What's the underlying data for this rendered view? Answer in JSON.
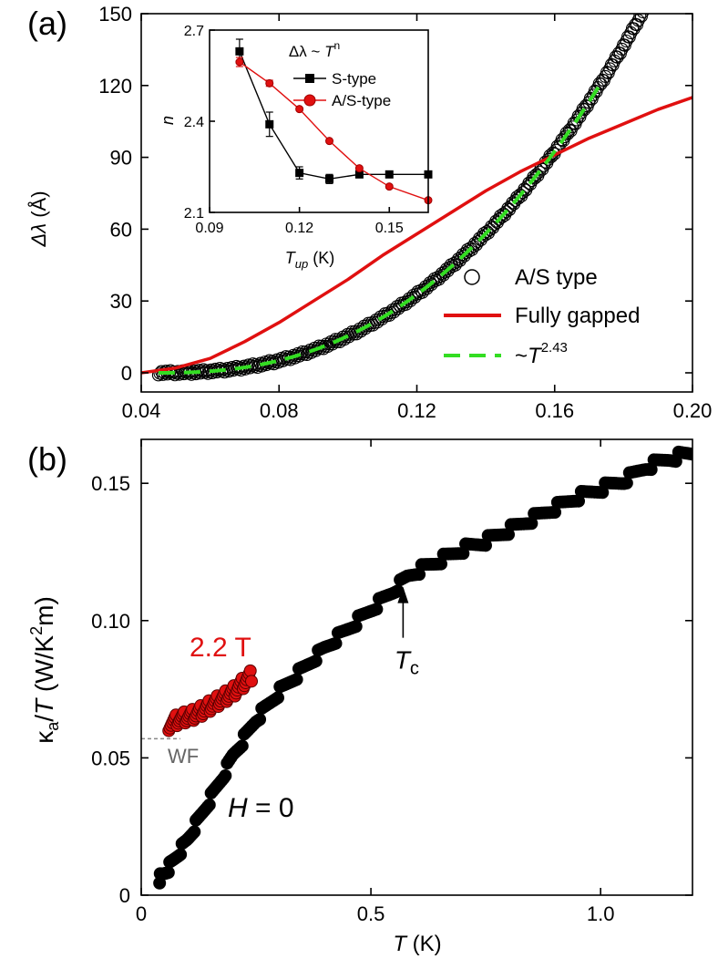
{
  "chart_data": [
    {
      "panel": "(a)",
      "type": "scatter",
      "xlabel": "",
      "ylabel": "Δλ (Å)",
      "ylabel_symbol": "Δλ",
      "ylabel_unit": " (Å)",
      "xlim": [
        0.04,
        0.2
      ],
      "ylim": [
        -8,
        150
      ],
      "xticks": [
        0.04,
        0.08,
        0.12,
        0.16,
        0.2
      ],
      "xtick_labels": [
        "0.04",
        "0.08",
        "0.12",
        "0.16",
        "0.20"
      ],
      "yticks": [
        0,
        30,
        60,
        90,
        120,
        150
      ],
      "ytick_labels": [
        "0",
        "30",
        "60",
        "90",
        "120",
        "150"
      ],
      "series": [
        {
          "name": "A/S type",
          "style": "open-circles",
          "color": "#000000",
          "legend": "A/S type",
          "x_range": [
            0.045,
            0.193
          ],
          "power_n": 2.43,
          "offset_x": 0.045,
          "amplitude": 120,
          "scale_x": 0.128
        },
        {
          "name": "Fully gapped",
          "style": "line",
          "color": "#e01010",
          "legend": "Fully gapped",
          "x": [
            0.04,
            0.045,
            0.05,
            0.06,
            0.07,
            0.08,
            0.09,
            0.1,
            0.11,
            0.12,
            0.13,
            0.14,
            0.15,
            0.16,
            0.17,
            0.18,
            0.19,
            0.2
          ],
          "y": [
            0,
            1,
            2,
            6,
            13,
            21,
            30,
            39,
            49,
            58,
            67,
            76,
            84,
            91,
            98,
            104,
            110,
            115
          ]
        },
        {
          "name": "~T^2.43",
          "style": "dashed",
          "color": "#33dd22",
          "legend_prefix": "~",
          "legend_symbol": "T",
          "legend_sup": "2.43",
          "x_range": [
            0.045,
            0.173
          ],
          "power_n": 2.43,
          "offset_x": 0.045,
          "amplitude": 120,
          "scale_x": 0.128
        }
      ],
      "inset": {
        "title_prefix": "Δλ ~ ",
        "title_symbol": "T",
        "title_sup": "n",
        "xlabel_symbol": "T",
        "xlabel_sub": "up",
        "xlabel_unit": " (K)",
        "ylabel": "n",
        "xlim": [
          0.09,
          0.163
        ],
        "ylim": [
          2.1,
          2.7
        ],
        "xticks": [
          0.09,
          0.12,
          0.15
        ],
        "xtick_labels": [
          "0.09",
          "0.12",
          "0.15"
        ],
        "yticks": [
          2.1,
          2.4,
          2.7
        ],
        "ytick_labels": [
          "2.1",
          "2.4",
          "2.7"
        ],
        "series": [
          {
            "name": "S-type",
            "color": "#000000",
            "marker": "square",
            "x": [
              0.1,
              0.11,
              0.12,
              0.13,
              0.14,
              0.15,
              0.163
            ],
            "y": [
              2.63,
              2.39,
              2.23,
              2.21,
              2.225,
              2.225,
              2.225
            ],
            "err": [
              0.04,
              0.04,
              0.02,
              0.015,
              0.01,
              0.005,
              0.005
            ]
          },
          {
            "name": "A/S-type",
            "color": "#e01010",
            "marker": "circle",
            "x": [
              0.1,
              0.11,
              0.12,
              0.13,
              0.14,
              0.15,
              0.163
            ],
            "y": [
              2.595,
              2.525,
              2.44,
              2.335,
              2.245,
              2.185,
              2.14
            ],
            "err": [
              0.015,
              0.01,
              0.005,
              0.005,
              0.005,
              0.005,
              0.005
            ]
          }
        ]
      }
    },
    {
      "panel": "(b)",
      "type": "scatter",
      "xlabel_symbol": "T",
      "xlabel_unit": " (K)",
      "ylabel_main": "κ",
      "ylabel_sub": "a",
      "ylabel_mid": "/",
      "ylabel_T": "T",
      "ylabel_unit_a": " (W/K",
      "ylabel_unit_sup": "2",
      "ylabel_unit_b": "m)",
      "xlim": [
        0,
        1.2
      ],
      "ylim": [
        0,
        0.166
      ],
      "xticks": [
        0,
        0.5,
        1.0
      ],
      "xtick_labels": [
        "0",
        "0.5",
        "1.0"
      ],
      "yticks": [
        0,
        0.05,
        0.1,
        0.15
      ],
      "ytick_labels": [
        "0",
        "0.05",
        "0.10",
        "0.15"
      ],
      "series": [
        {
          "name": "H = 0",
          "color": "#000000",
          "x": [
            0.04,
            0.06,
            0.08,
            0.1,
            0.12,
            0.15,
            0.18,
            0.2,
            0.22,
            0.25,
            0.28,
            0.3,
            0.35,
            0.4,
            0.45,
            0.5,
            0.55,
            0.58,
            0.6,
            0.65,
            0.7,
            0.75,
            0.8,
            0.85,
            0.9,
            0.95,
            1.0,
            1.05,
            1.1,
            1.15,
            1.2
          ],
          "y": [
            0.006,
            0.01,
            0.015,
            0.02,
            0.026,
            0.035,
            0.044,
            0.051,
            0.056,
            0.064,
            0.07,
            0.074,
            0.082,
            0.09,
            0.097,
            0.104,
            0.111,
            0.116,
            0.118,
            0.122,
            0.126,
            0.129,
            0.133,
            0.137,
            0.141,
            0.145,
            0.148,
            0.151,
            0.156,
            0.159,
            0.161
          ]
        },
        {
          "name": "2.2 T",
          "color": "#e01010",
          "x": [
            0.06,
            0.08,
            0.1,
            0.12,
            0.14,
            0.16,
            0.18,
            0.2,
            0.22,
            0.24
          ],
          "y": [
            0.062,
            0.064,
            0.065,
            0.066,
            0.068,
            0.07,
            0.072,
            0.074,
            0.077,
            0.08
          ]
        }
      ],
      "wf_level": 0.057,
      "annotations": {
        "field_label": "2.2 T",
        "wf_label": "WF",
        "tc_symbol": "T",
        "tc_sub": "c",
        "tc_x": 0.57,
        "tc_y": 0.113,
        "h_symbol": "H",
        "h_rest": " = 0"
      }
    }
  ]
}
